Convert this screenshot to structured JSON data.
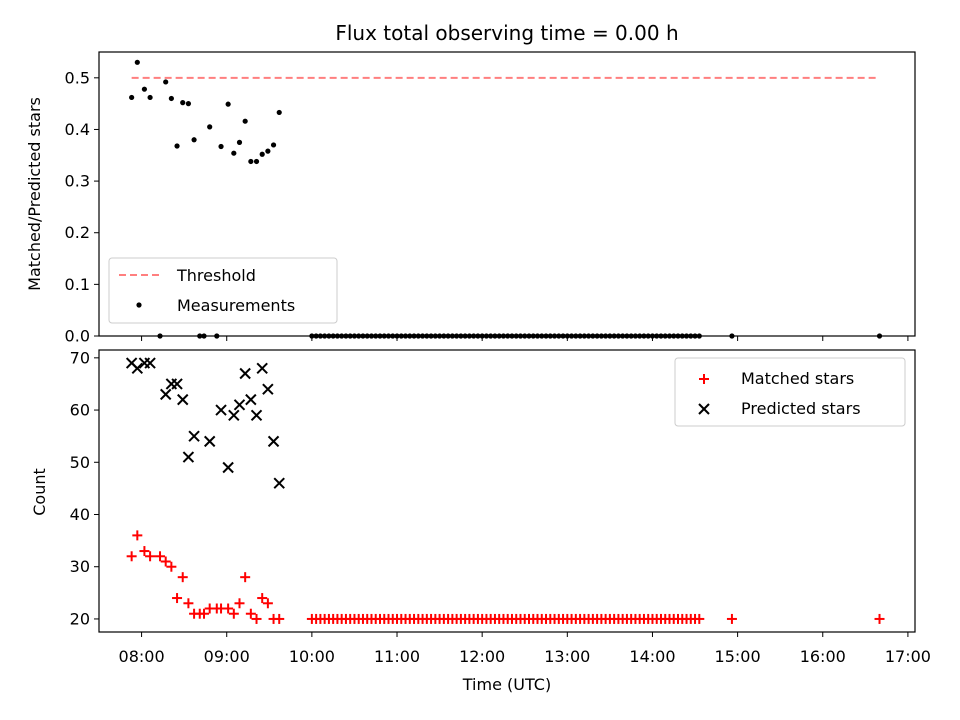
{
  "chart_data": [
    {
      "type": "scatter",
      "title": "Flux total observing time = 0.00 h",
      "xlabel": "",
      "ylabel": "Matched/Predicted stars",
      "xlim": [
        "07:30",
        "17:05"
      ],
      "ylim": [
        0,
        0.55
      ],
      "yticks": [
        0.0,
        0.1,
        0.2,
        0.3,
        0.4,
        0.5
      ],
      "grid": false,
      "legend_position": "lower-left",
      "threshold": {
        "name": "Threshold",
        "value": 0.5,
        "x_start": "07:53",
        "x_end": "16:40",
        "color": "#ff7f7f",
        "style": "dashed"
      },
      "series": [
        {
          "name": "Measurements",
          "color": "#000000",
          "marker": "dot",
          "points": [
            [
              "07:53",
              0.462
            ],
            [
              "07:57",
              0.53
            ],
            [
              "08:02",
              0.478
            ],
            [
              "08:06",
              0.462
            ],
            [
              "08:13",
              0.0
            ],
            [
              "08:17",
              0.492
            ],
            [
              "08:21",
              0.46
            ],
            [
              "08:25",
              0.368
            ],
            [
              "08:29",
              0.452
            ],
            [
              "08:33",
              0.45
            ],
            [
              "08:37",
              0.38
            ],
            [
              "08:41",
              0.0
            ],
            [
              "08:44",
              0.0
            ],
            [
              "08:48",
              0.405
            ],
            [
              "08:53",
              0.0
            ],
            [
              "08:56",
              0.367
            ],
            [
              "09:01",
              0.449
            ],
            [
              "09:05",
              0.354
            ],
            [
              "09:09",
              0.375
            ],
            [
              "09:13",
              0.416
            ],
            [
              "09:17",
              0.338
            ],
            [
              "09:21",
              0.338
            ],
            [
              "09:25",
              0.352
            ],
            [
              "09:29",
              0.358
            ],
            [
              "09:33",
              0.37
            ],
            [
              "09:37",
              0.433
            ],
            [
              "10:00",
              0.0
            ],
            [
              "10:03",
              0.0
            ],
            [
              "10:06",
              0.0
            ],
            [
              "10:09",
              0.0
            ],
            [
              "10:12",
              0.0
            ],
            [
              "10:15",
              0.0
            ],
            [
              "10:18",
              0.0
            ],
            [
              "10:21",
              0.0
            ],
            [
              "10:24",
              0.0
            ],
            [
              "10:27",
              0.0
            ],
            [
              "10:30",
              0.0
            ],
            [
              "10:33",
              0.0
            ],
            [
              "10:36",
              0.0
            ],
            [
              "10:39",
              0.0
            ],
            [
              "10:42",
              0.0
            ],
            [
              "10:45",
              0.0
            ],
            [
              "10:48",
              0.0
            ],
            [
              "10:51",
              0.0
            ],
            [
              "10:54",
              0.0
            ],
            [
              "10:57",
              0.0
            ],
            [
              "11:00",
              0.0
            ],
            [
              "11:03",
              0.0
            ],
            [
              "11:06",
              0.0
            ],
            [
              "11:09",
              0.0
            ],
            [
              "11:12",
              0.0
            ],
            [
              "11:15",
              0.0
            ],
            [
              "11:18",
              0.0
            ],
            [
              "11:21",
              0.0
            ],
            [
              "11:24",
              0.0
            ],
            [
              "11:27",
              0.0
            ],
            [
              "11:30",
              0.0
            ],
            [
              "11:33",
              0.0
            ],
            [
              "11:36",
              0.0
            ],
            [
              "11:39",
              0.0
            ],
            [
              "11:42",
              0.0
            ],
            [
              "11:45",
              0.0
            ],
            [
              "11:48",
              0.0
            ],
            [
              "11:51",
              0.0
            ],
            [
              "11:54",
              0.0
            ],
            [
              "11:57",
              0.0
            ],
            [
              "12:00",
              0.0
            ],
            [
              "12:03",
              0.0
            ],
            [
              "12:06",
              0.0
            ],
            [
              "12:09",
              0.0
            ],
            [
              "12:12",
              0.0
            ],
            [
              "12:15",
              0.0
            ],
            [
              "12:18",
              0.0
            ],
            [
              "12:21",
              0.0
            ],
            [
              "12:24",
              0.0
            ],
            [
              "12:27",
              0.0
            ],
            [
              "12:30",
              0.0
            ],
            [
              "12:33",
              0.0
            ],
            [
              "12:36",
              0.0
            ],
            [
              "12:39",
              0.0
            ],
            [
              "12:42",
              0.0
            ],
            [
              "12:45",
              0.0
            ],
            [
              "12:48",
              0.0
            ],
            [
              "12:51",
              0.0
            ],
            [
              "12:54",
              0.0
            ],
            [
              "12:57",
              0.0
            ],
            [
              "13:00",
              0.0
            ],
            [
              "13:03",
              0.0
            ],
            [
              "13:06",
              0.0
            ],
            [
              "13:09",
              0.0
            ],
            [
              "13:12",
              0.0
            ],
            [
              "13:15",
              0.0
            ],
            [
              "13:18",
              0.0
            ],
            [
              "13:21",
              0.0
            ],
            [
              "13:24",
              0.0
            ],
            [
              "13:27",
              0.0
            ],
            [
              "13:30",
              0.0
            ],
            [
              "13:33",
              0.0
            ],
            [
              "13:36",
              0.0
            ],
            [
              "13:39",
              0.0
            ],
            [
              "13:42",
              0.0
            ],
            [
              "13:45",
              0.0
            ],
            [
              "13:48",
              0.0
            ],
            [
              "13:51",
              0.0
            ],
            [
              "13:54",
              0.0
            ],
            [
              "13:57",
              0.0
            ],
            [
              "14:00",
              0.0
            ],
            [
              "14:03",
              0.0
            ],
            [
              "14:06",
              0.0
            ],
            [
              "14:09",
              0.0
            ],
            [
              "14:12",
              0.0
            ],
            [
              "14:15",
              0.0
            ],
            [
              "14:18",
              0.0
            ],
            [
              "14:21",
              0.0
            ],
            [
              "14:24",
              0.0
            ],
            [
              "14:27",
              0.0
            ],
            [
              "14:30",
              0.0
            ],
            [
              "14:33",
              0.0
            ],
            [
              "14:56",
              0.0
            ],
            [
              "16:40",
              0.0
            ]
          ]
        }
      ]
    },
    {
      "type": "scatter",
      "title": "",
      "xlabel": "Time (UTC)",
      "ylabel": "Count",
      "xlim": [
        "07:30",
        "17:05"
      ],
      "xticks": [
        "08:00",
        "09:00",
        "10:00",
        "11:00",
        "12:00",
        "13:00",
        "14:00",
        "15:00",
        "16:00",
        "17:00"
      ],
      "ylim": [
        17.5,
        71.5
      ],
      "yticks": [
        20,
        30,
        40,
        50,
        60,
        70
      ],
      "grid": false,
      "legend_position": "upper-right",
      "series": [
        {
          "name": "Matched stars",
          "color": "#ff0000",
          "marker": "plus",
          "points": [
            [
              "07:53",
              32
            ],
            [
              "07:57",
              36
            ],
            [
              "08:02",
              33
            ],
            [
              "08:06",
              32
            ],
            [
              "08:13",
              32
            ],
            [
              "08:17",
              31
            ],
            [
              "08:21",
              30
            ],
            [
              "08:25",
              24
            ],
            [
              "08:29",
              28
            ],
            [
              "08:33",
              23
            ],
            [
              "08:37",
              21
            ],
            [
              "08:41",
              21
            ],
            [
              "08:44",
              21
            ],
            [
              "08:48",
              22
            ],
            [
              "08:53",
              22
            ],
            [
              "08:56",
              22
            ],
            [
              "09:01",
              22
            ],
            [
              "09:05",
              21
            ],
            [
              "09:09",
              23
            ],
            [
              "09:13",
              28
            ],
            [
              "09:17",
              21
            ],
            [
              "09:21",
              20
            ],
            [
              "09:25",
              24
            ],
            [
              "09:29",
              23
            ],
            [
              "09:33",
              20
            ],
            [
              "09:37",
              20
            ],
            [
              "10:00",
              20
            ],
            [
              "10:03",
              20
            ],
            [
              "10:06",
              20
            ],
            [
              "10:09",
              20
            ],
            [
              "10:12",
              20
            ],
            [
              "10:15",
              20
            ],
            [
              "10:18",
              20
            ],
            [
              "10:21",
              20
            ],
            [
              "10:24",
              20
            ],
            [
              "10:27",
              20
            ],
            [
              "10:30",
              20
            ],
            [
              "10:33",
              20
            ],
            [
              "10:36",
              20
            ],
            [
              "10:39",
              20
            ],
            [
              "10:42",
              20
            ],
            [
              "10:45",
              20
            ],
            [
              "10:48",
              20
            ],
            [
              "10:51",
              20
            ],
            [
              "10:54",
              20
            ],
            [
              "10:57",
              20
            ],
            [
              "11:00",
              20
            ],
            [
              "11:03",
              20
            ],
            [
              "11:06",
              20
            ],
            [
              "11:09",
              20
            ],
            [
              "11:12",
              20
            ],
            [
              "11:15",
              20
            ],
            [
              "11:18",
              20
            ],
            [
              "11:21",
              20
            ],
            [
              "11:24",
              20
            ],
            [
              "11:27",
              20
            ],
            [
              "11:30",
              20
            ],
            [
              "11:33",
              20
            ],
            [
              "11:36",
              20
            ],
            [
              "11:39",
              20
            ],
            [
              "11:42",
              20
            ],
            [
              "11:45",
              20
            ],
            [
              "11:48",
              20
            ],
            [
              "11:51",
              20
            ],
            [
              "11:54",
              20
            ],
            [
              "11:57",
              20
            ],
            [
              "12:00",
              20
            ],
            [
              "12:03",
              20
            ],
            [
              "12:06",
              20
            ],
            [
              "12:09",
              20
            ],
            [
              "12:12",
              20
            ],
            [
              "12:15",
              20
            ],
            [
              "12:18",
              20
            ],
            [
              "12:21",
              20
            ],
            [
              "12:24",
              20
            ],
            [
              "12:27",
              20
            ],
            [
              "12:30",
              20
            ],
            [
              "12:33",
              20
            ],
            [
              "12:36",
              20
            ],
            [
              "12:39",
              20
            ],
            [
              "12:42",
              20
            ],
            [
              "12:45",
              20
            ],
            [
              "12:48",
              20
            ],
            [
              "12:51",
              20
            ],
            [
              "12:54",
              20
            ],
            [
              "12:57",
              20
            ],
            [
              "13:00",
              20
            ],
            [
              "13:03",
              20
            ],
            [
              "13:06",
              20
            ],
            [
              "13:09",
              20
            ],
            [
              "13:12",
              20
            ],
            [
              "13:15",
              20
            ],
            [
              "13:18",
              20
            ],
            [
              "13:21",
              20
            ],
            [
              "13:24",
              20
            ],
            [
              "13:27",
              20
            ],
            [
              "13:30",
              20
            ],
            [
              "13:33",
              20
            ],
            [
              "13:36",
              20
            ],
            [
              "13:39",
              20
            ],
            [
              "13:42",
              20
            ],
            [
              "13:45",
              20
            ],
            [
              "13:48",
              20
            ],
            [
              "13:51",
              20
            ],
            [
              "13:54",
              20
            ],
            [
              "13:57",
              20
            ],
            [
              "14:00",
              20
            ],
            [
              "14:03",
              20
            ],
            [
              "14:06",
              20
            ],
            [
              "14:09",
              20
            ],
            [
              "14:12",
              20
            ],
            [
              "14:15",
              20
            ],
            [
              "14:18",
              20
            ],
            [
              "14:21",
              20
            ],
            [
              "14:24",
              20
            ],
            [
              "14:27",
              20
            ],
            [
              "14:30",
              20
            ],
            [
              "14:33",
              20
            ],
            [
              "14:56",
              20
            ],
            [
              "16:40",
              20
            ]
          ]
        },
        {
          "name": "Predicted stars",
          "color": "#000000",
          "marker": "x",
          "points": [
            [
              "07:53",
              69
            ],
            [
              "07:57",
              68
            ],
            [
              "08:02",
              69
            ],
            [
              "08:06",
              69
            ],
            [
              "08:17",
              63
            ],
            [
              "08:21",
              65
            ],
            [
              "08:25",
              65
            ],
            [
              "08:29",
              62
            ],
            [
              "08:33",
              51
            ],
            [
              "08:37",
              55
            ],
            [
              "08:48",
              54
            ],
            [
              "08:56",
              60
            ],
            [
              "09:01",
              49
            ],
            [
              "09:05",
              59
            ],
            [
              "09:09",
              61
            ],
            [
              "09:13",
              67
            ],
            [
              "09:17",
              62
            ],
            [
              "09:21",
              59
            ],
            [
              "09:25",
              68
            ],
            [
              "09:29",
              64
            ],
            [
              "09:33",
              54
            ],
            [
              "09:37",
              46
            ]
          ]
        }
      ]
    }
  ]
}
